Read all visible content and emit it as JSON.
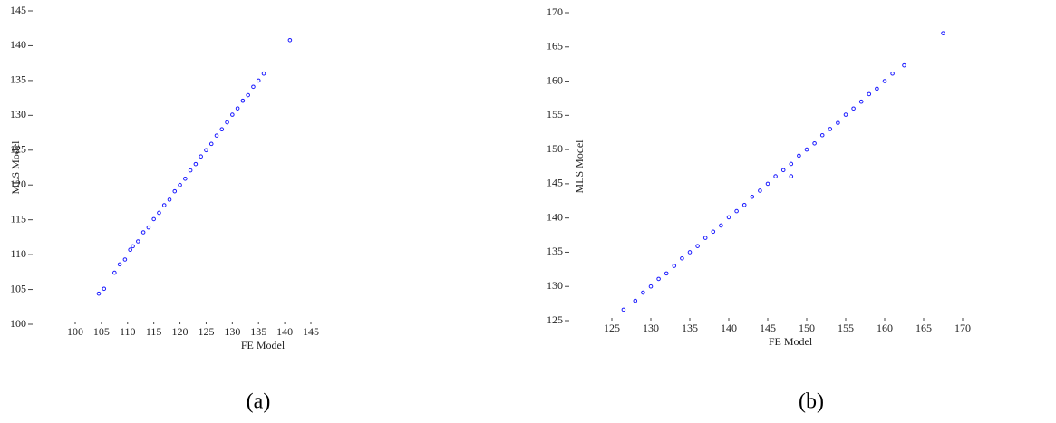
{
  "chart_data": [
    {
      "type": "scatter",
      "caption": "(a)",
      "xlabel": "FE Model",
      "ylabel": "MLS Model",
      "color": "#1a1aff",
      "xlim": [
        100,
        145
      ],
      "ylim": [
        100,
        145
      ],
      "xticks": [
        100,
        105,
        110,
        115,
        120,
        125,
        130,
        135,
        140,
        145
      ],
      "yticks": [
        100,
        105,
        110,
        115,
        120,
        125,
        130,
        135,
        140,
        145
      ],
      "x": [
        104.5,
        105.5,
        107.5,
        108.5,
        109.5,
        110.5,
        111,
        112,
        113,
        114,
        115,
        116,
        117,
        118,
        119,
        120,
        121,
        122,
        123,
        124,
        125,
        126,
        127,
        128,
        129,
        130,
        131,
        132,
        133,
        134,
        135,
        136,
        141
      ],
      "y": [
        104.4,
        105.1,
        107.4,
        108.6,
        109.3,
        110.7,
        111.2,
        111.9,
        113.2,
        113.9,
        115.1,
        116.0,
        117.1,
        117.9,
        119.1,
        120.0,
        120.9,
        122.1,
        123.0,
        124.1,
        125.0,
        125.9,
        127.1,
        128.0,
        129.0,
        130.1,
        131.0,
        132.1,
        132.9,
        134.1,
        135.0,
        136.0,
        140.8
      ]
    },
    {
      "type": "scatter",
      "caption": "(b)",
      "xlabel": "FE Model",
      "ylabel": "MLS Model",
      "color": "#1a1aff",
      "xlim": [
        125,
        170
      ],
      "ylim": [
        125,
        170
      ],
      "xticks": [
        125,
        130,
        135,
        140,
        145,
        150,
        155,
        160,
        165,
        170
      ],
      "yticks": [
        125,
        130,
        135,
        140,
        145,
        150,
        155,
        160,
        165,
        170
      ],
      "x": [
        126.5,
        128,
        129,
        130,
        131,
        132,
        133,
        134,
        135,
        136,
        137,
        138,
        139,
        140,
        141,
        142,
        143,
        144,
        145,
        146,
        147,
        148,
        148,
        149,
        150,
        151,
        152,
        153,
        154,
        155,
        156,
        157,
        158,
        159,
        160,
        161,
        162.5,
        167.5
      ],
      "y": [
        126.6,
        127.9,
        129.1,
        130.0,
        131.1,
        131.9,
        133.0,
        134.1,
        135.0,
        135.9,
        137.1,
        138.0,
        138.9,
        140.1,
        141.0,
        141.9,
        143.1,
        144.0,
        145.0,
        146.1,
        147.0,
        147.9,
        146.1,
        149.1,
        150.0,
        150.9,
        152.1,
        153.0,
        153.9,
        155.1,
        156.0,
        157.0,
        158.1,
        158.9,
        160.0,
        161.1,
        162.3,
        167.0
      ]
    }
  ]
}
